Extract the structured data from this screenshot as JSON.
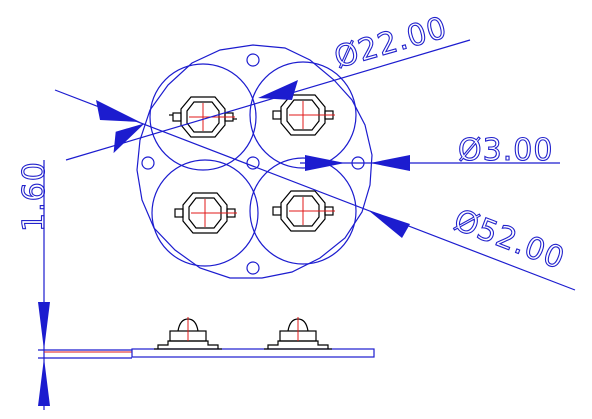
{
  "drawing": {
    "dimensions": {
      "diameter_22": "Ø22.00",
      "diameter_3": "Ø3.00",
      "diameter_52": "Ø52.00",
      "thickness": "1.60"
    },
    "colors": {
      "outline": "#1c1ccf",
      "component": "#000000",
      "center_marks": "#e01818"
    }
  }
}
